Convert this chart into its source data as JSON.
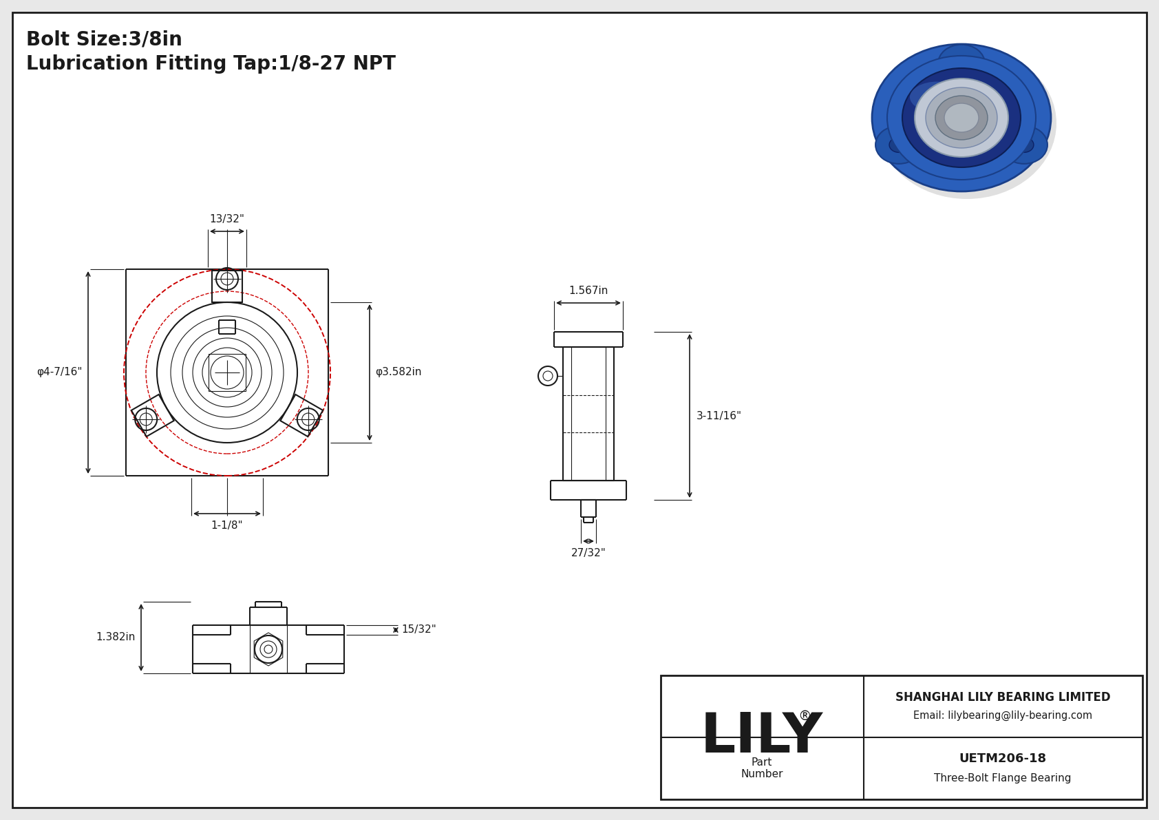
{
  "bg_color": "#e8e8e8",
  "line_color": "#1a1a1a",
  "red_color": "#cc0000",
  "title_line1": "Bolt Size:3/8in",
  "title_line2": "Lubrication Fitting Tap:1/8-27 NPT",
  "company_name": "SHANGHAI LILY BEARING LIMITED",
  "company_email": "Email: lilybearing@lily-bearing.com",
  "part_label": "Part\nNumber",
  "part_number": "UETM206-18",
  "part_type": "Three-Bolt Flange Bearing",
  "lily_text": "LILY",
  "dim_13_32": "13/32\"",
  "dim_phi_4_7_16": "φ4-7/16\"",
  "dim_phi_3_582": "φ3.582in",
  "dim_1_1_8": "1-1/8\"",
  "dim_1_567": "1.567in",
  "dim_3_11_16": "3-11/16\"",
  "dim_27_32": "27/32\"",
  "dim_1_382": "1.382in",
  "dim_15_32": "15/32\""
}
